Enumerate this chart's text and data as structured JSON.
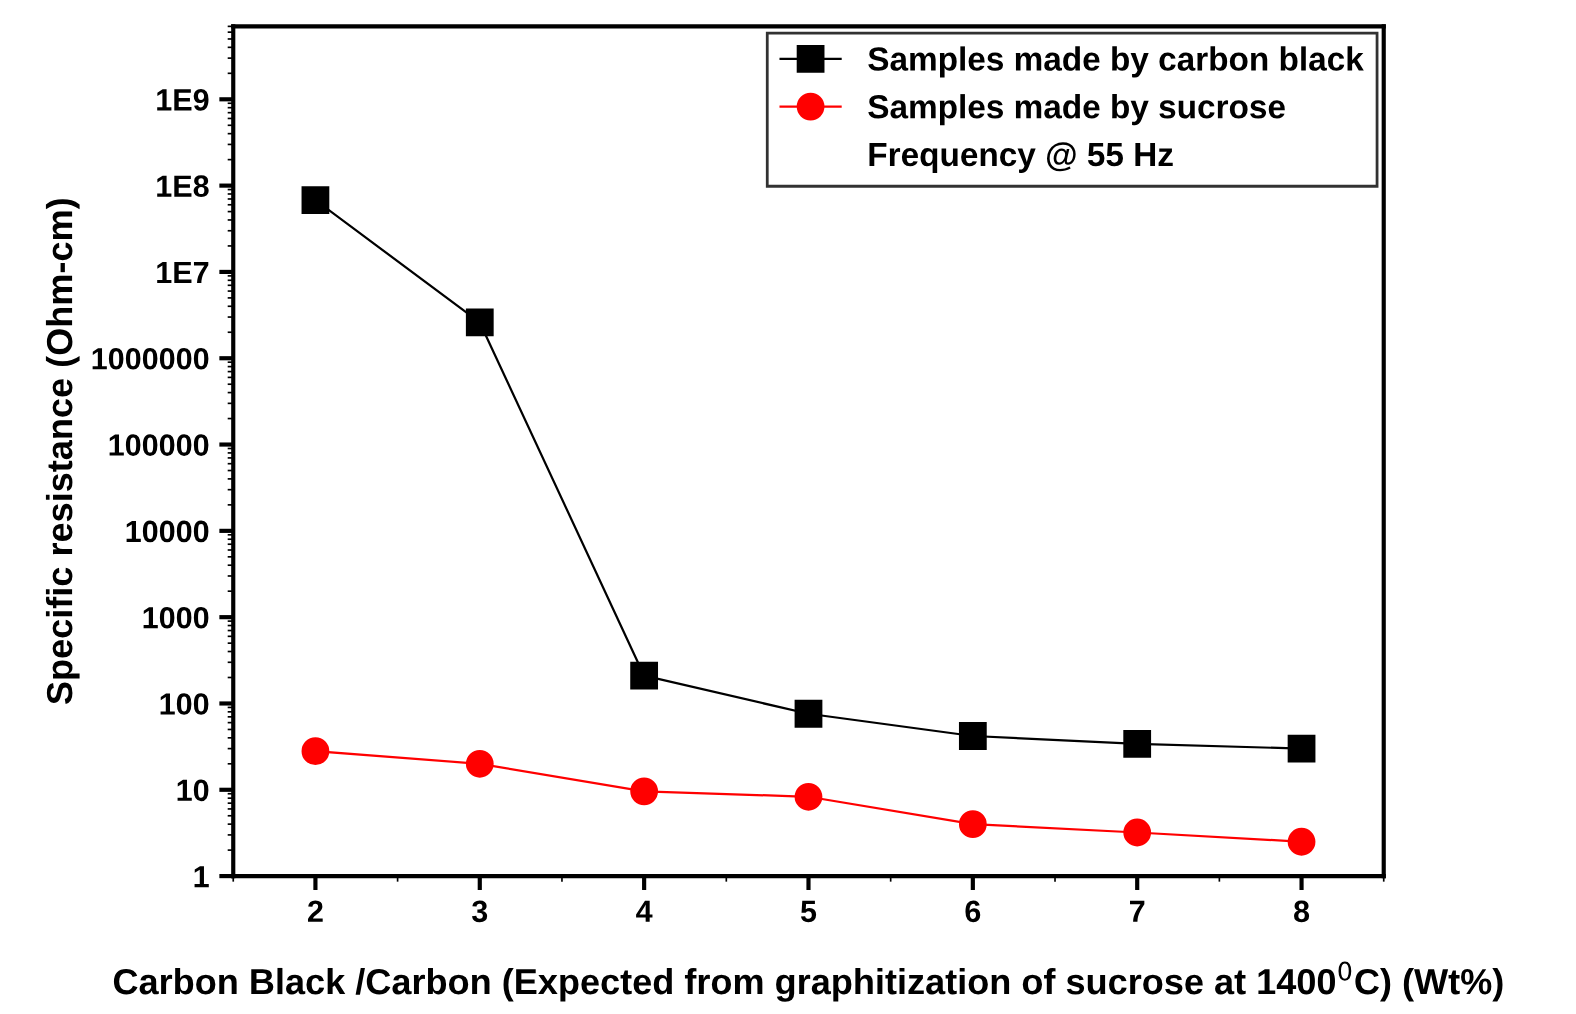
{
  "chart_data": {
    "type": "line",
    "xlabel": "Carbon Black /Carbon (Expected from graphitization of sucrose at 1400$^{0}$C) (Wt%)",
    "ylabel": "Specific resistance (Ohm-cm)",
    "x": [
      2,
      3,
      4,
      5,
      6,
      7,
      8
    ],
    "series": [
      {
        "name": "Samples made by carbon black",
        "color": "#000000",
        "marker": "square",
        "values": [
          68000000,
          2600000,
          210,
          76,
          42,
          34,
          30
        ]
      },
      {
        "name": "Samples made by sucrose",
        "color": "#ff0000",
        "marker": "circle",
        "values": [
          28,
          20,
          9.6,
          8.3,
          4.0,
          3.2,
          2.5
        ]
      }
    ],
    "annotations": [
      "Frequency @ 55 Hz"
    ],
    "log": "y",
    "xlim": [
      1.5,
      8.5
    ],
    "xticks": [
      2,
      3,
      4,
      5,
      6,
      7,
      8
    ],
    "ylim": [
      1,
      7000000000
    ],
    "yticks": [
      1,
      10,
      100,
      1000,
      10000,
      100000,
      1000000,
      {
        "value": 10000000,
        "label": "1E7"
      },
      {
        "value": 100000000,
        "label": "1E8"
      },
      {
        "value": 1000000000,
        "label": "1E9"
      }
    ],
    "grid": false,
    "legend": "top right",
    "line_style": "solid"
  }
}
